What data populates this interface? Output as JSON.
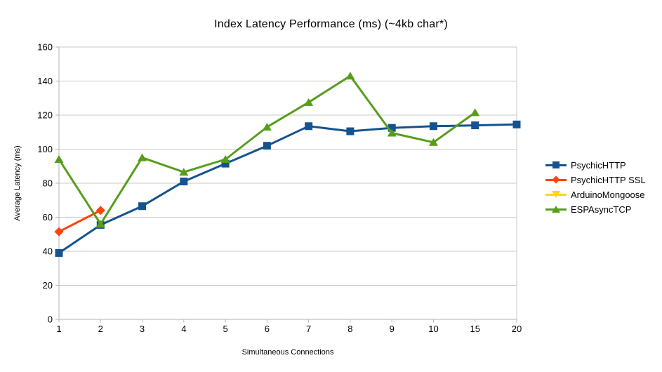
{
  "chart_data": {
    "type": "line",
    "title": "Index Latency Performance (ms) (~4kb char*)",
    "xlabel": "Simultaneous Connections",
    "ylabel": "Average Latency (ms)",
    "categories": [
      "1",
      "2",
      "3",
      "4",
      "5",
      "6",
      "7",
      "8",
      "9",
      "10",
      "15",
      "20"
    ],
    "series": [
      {
        "name": "PsychicHTTP",
        "color": "#15538E",
        "marker": "square",
        "values": [
          39,
          55.5,
          66.5,
          81,
          91.5,
          102,
          113.5,
          110.5,
          112.5,
          113.5,
          114,
          114.5
        ]
      },
      {
        "name": "PsychicHTTP SSL",
        "color": "#FF420E",
        "marker": "diamond",
        "values": [
          51.5,
          64,
          null,
          null,
          null,
          null,
          null,
          null,
          null,
          null,
          null,
          null
        ]
      },
      {
        "name": "ArduinoMongoose",
        "color": "#FFD320",
        "marker": "triangle-down",
        "values": [
          null,
          null,
          null,
          null,
          null,
          null,
          null,
          null,
          null,
          null,
          null,
          null
        ]
      },
      {
        "name": "ESPAsyncTCP",
        "color": "#579D1C",
        "marker": "triangle-up",
        "values": [
          94,
          56,
          95,
          86.5,
          94,
          113,
          127.5,
          143,
          109.5,
          104,
          121.5,
          null
        ]
      }
    ],
    "ylim": [
      0,
      160
    ],
    "y_tick_step": 20,
    "grid": "horizontal",
    "legend_position": "right"
  },
  "style": {
    "gridline_color": "#C9C9C9",
    "axis_color": "#B3B3B3",
    "text_color": "#000000",
    "background_color": "#FFFFFF"
  }
}
